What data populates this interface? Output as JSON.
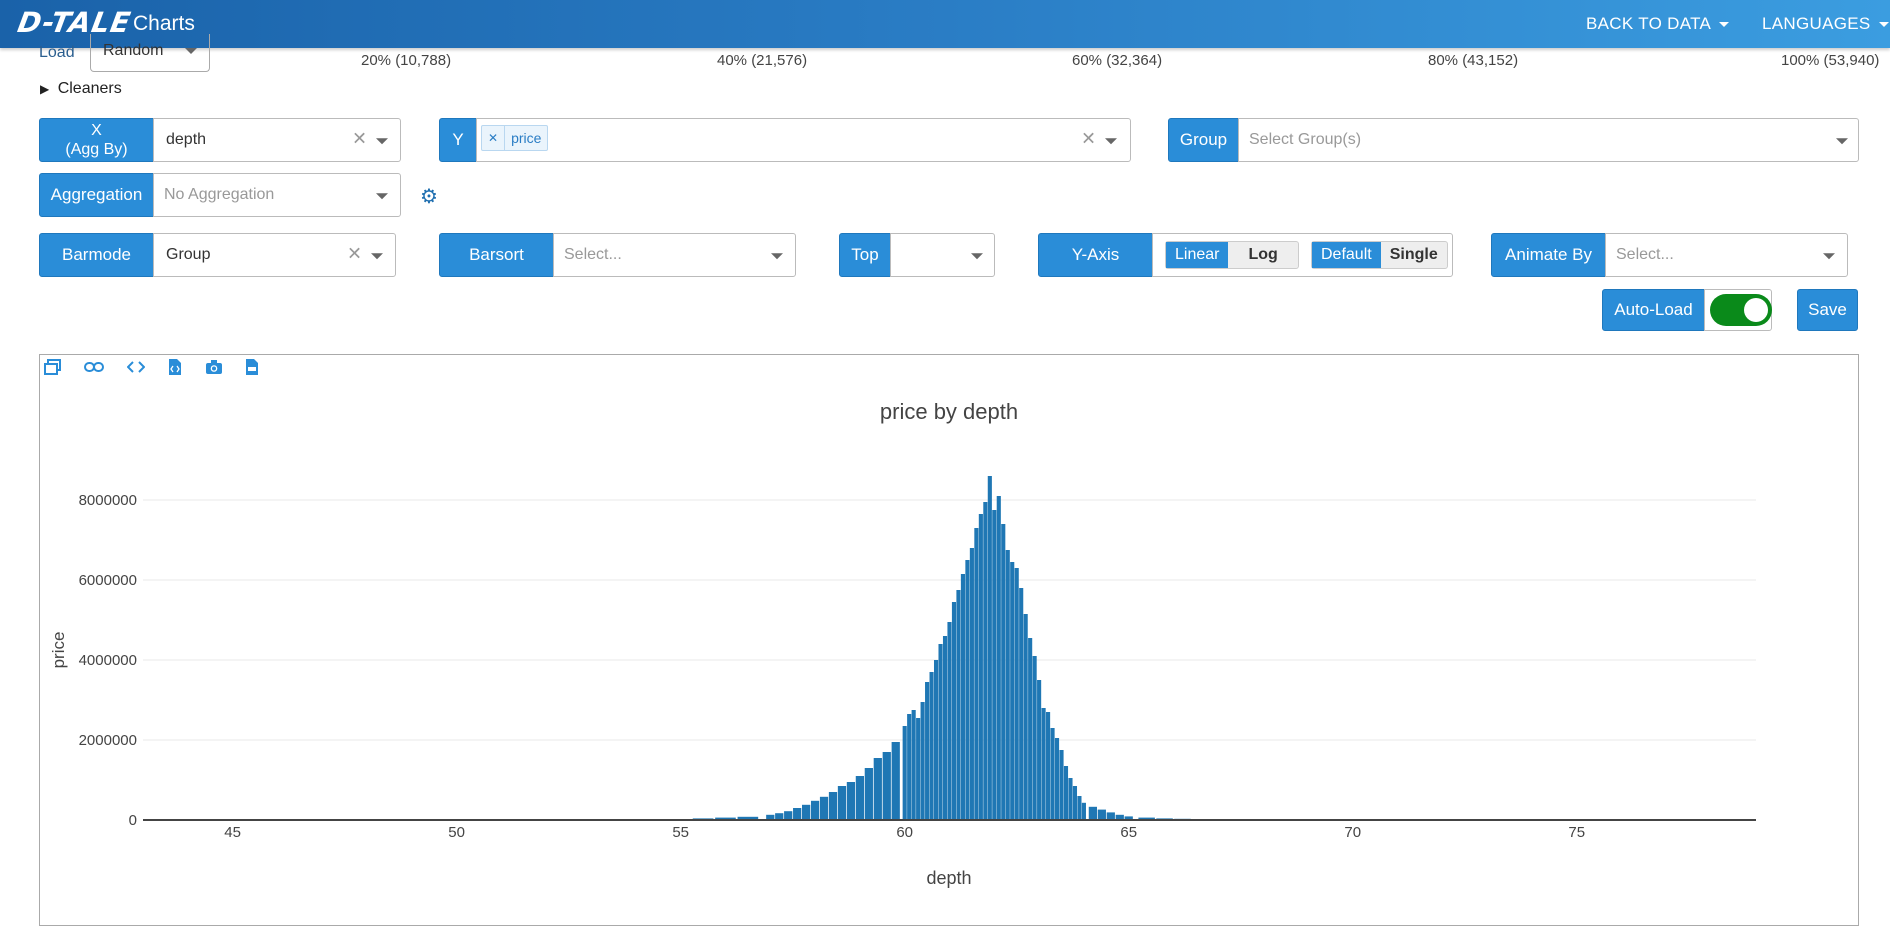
{
  "header": {
    "logo_text": "D-TALE",
    "title": "Charts",
    "back_to_data": "BACK TO DATA",
    "languages": "LANGUAGES"
  },
  "load": {
    "label": "Load",
    "value": "Random"
  },
  "progress_labels": [
    "20% (10,788)",
    "40% (21,576)",
    "60% (32,364)",
    "80% (43,152)",
    "100% (53,940)"
  ],
  "cleaners_label": "Cleaners",
  "x_field": {
    "label_line1": "X",
    "label_line2": "(Agg By)",
    "value": "depth"
  },
  "y_field": {
    "label": "Y",
    "tags": [
      "price"
    ]
  },
  "group_field": {
    "label": "Group",
    "placeholder": "Select Group(s)"
  },
  "aggregation_field": {
    "label": "Aggregation",
    "placeholder": "No Aggregation"
  },
  "barmode_field": {
    "label": "Barmode",
    "value": "Group"
  },
  "barsort_field": {
    "label": "Barsort",
    "placeholder": "Select..."
  },
  "top_field": {
    "label": "Top",
    "value": ""
  },
  "yaxis_field": {
    "label": "Y-Axis",
    "scale_options": [
      "Linear",
      "Log"
    ],
    "scale_selected": "Linear",
    "mode_options": [
      "Default",
      "Single"
    ],
    "mode_selected": "Default"
  },
  "animate_field": {
    "label": "Animate By",
    "placeholder": "Select..."
  },
  "auto_load": {
    "label": "Auto-Load",
    "enabled": true
  },
  "save_label": "Save",
  "toolbar_icons": [
    "popup-icon",
    "link-icon",
    "code-icon",
    "export-html-icon",
    "camera-icon",
    "export-csv-icon"
  ],
  "colors": {
    "accent": "#2a8dd8",
    "bar": "#1f77b4",
    "toggle_on": "#0a8a1a"
  },
  "chart_data": {
    "type": "bar",
    "title": "price by depth",
    "xlabel": "depth",
    "ylabel": "price",
    "xlim": [
      43,
      79
    ],
    "ylim": [
      0,
      9000000
    ],
    "xticks": [
      45,
      50,
      55,
      60,
      65,
      70,
      75
    ],
    "yticks": [
      0,
      2000000,
      4000000,
      6000000,
      8000000
    ],
    "grid": true,
    "series": [
      {
        "x": [
          55.0,
          55.5,
          56.0,
          56.5,
          57.0,
          57.2,
          57.4,
          57.6,
          57.8,
          58.0,
          58.2,
          58.4,
          58.6,
          58.8,
          59.0,
          59.2,
          59.4,
          59.6,
          59.8,
          60.0,
          60.1,
          60.2,
          60.3,
          60.4,
          60.5,
          60.6,
          60.7,
          60.8,
          60.9,
          61.0,
          61.1,
          61.2,
          61.3,
          61.4,
          61.5,
          61.6,
          61.7,
          61.8,
          61.9,
          62.0,
          62.1,
          62.2,
          62.3,
          62.4,
          62.5,
          62.6,
          62.7,
          62.8,
          62.9,
          63.0,
          63.1,
          63.2,
          63.3,
          63.4,
          63.5,
          63.6,
          63.7,
          63.8,
          63.9,
          64.0,
          64.2,
          64.4,
          64.6,
          64.8,
          65.0,
          65.4,
          65.8,
          66.2,
          66.6,
          67.0,
          67.5,
          68.0,
          69.0,
          70.0,
          71.0
        ],
        "y": [
          20000,
          40000,
          60000,
          80000,
          130000,
          170000,
          220000,
          300000,
          380000,
          480000,
          580000,
          700000,
          850000,
          950000,
          1100000,
          1300000,
          1550000,
          1700000,
          1950000,
          2350000,
          2650000,
          2750000,
          2550000,
          2950000,
          3450000,
          3700000,
          4000000,
          4400000,
          4600000,
          4950000,
          5450000,
          5750000,
          6150000,
          6500000,
          6800000,
          7300000,
          7650000,
          7950000,
          8600000,
          7750000,
          8100000,
          7400000,
          6750000,
          6450000,
          6300000,
          5800000,
          5150000,
          4550000,
          4100000,
          3500000,
          2800000,
          2700000,
          2300000,
          2050000,
          1750000,
          1350000,
          1050000,
          850000,
          600000,
          430000,
          330000,
          260000,
          190000,
          130000,
          90000,
          60000,
          40000,
          30000,
          20000,
          15000,
          10000,
          8000,
          5000,
          3000,
          2000
        ]
      }
    ]
  }
}
